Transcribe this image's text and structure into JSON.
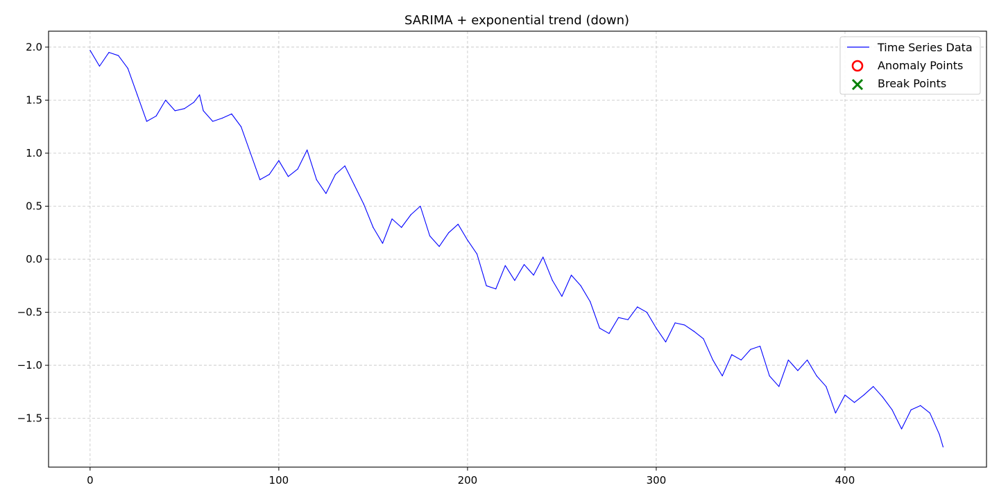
{
  "chart_data": {
    "type": "line",
    "title": "SARIMA + exponential trend (down)",
    "xlabel": "",
    "ylabel": "",
    "xlim": [
      -22,
      475
    ],
    "ylim": [
      -1.96,
      2.15
    ],
    "xticks": [
      0,
      100,
      200,
      300,
      400
    ],
    "yticks": [
      -1.5,
      -1.0,
      -0.5,
      0.0,
      0.5,
      1.0,
      1.5,
      2.0
    ],
    "grid": true,
    "legend": {
      "placement": "top-right",
      "entries": [
        {
          "label": "Time Series Data",
          "marker": "line",
          "color": "#0000ff"
        },
        {
          "label": "Anomaly Points",
          "marker": "circle-open",
          "color": "#ff0000"
        },
        {
          "label": "Break Points",
          "marker": "x",
          "color": "#008000"
        }
      ]
    },
    "series": [
      {
        "name": "Time Series Data",
        "color": "#0000ff",
        "x": [
          0,
          5,
          10,
          15,
          20,
          25,
          30,
          35,
          40,
          45,
          50,
          55,
          58,
          60,
          65,
          70,
          75,
          80,
          85,
          90,
          95,
          100,
          105,
          110,
          115,
          120,
          125,
          130,
          135,
          140,
          145,
          150,
          155,
          160,
          165,
          170,
          175,
          180,
          185,
          190,
          195,
          200,
          205,
          210,
          215,
          220,
          225,
          230,
          235,
          240,
          245,
          250,
          255,
          260,
          265,
          270,
          275,
          280,
          285,
          290,
          295,
          300,
          305,
          310,
          315,
          320,
          325,
          330,
          335,
          340,
          345,
          350,
          355,
          360,
          365,
          370,
          375,
          380,
          385,
          390,
          395,
          400,
          405,
          410,
          415,
          420,
          425,
          430,
          435,
          440,
          445,
          450,
          452
        ],
        "values": [
          1.97,
          1.82,
          1.95,
          1.92,
          1.8,
          1.55,
          1.3,
          1.35,
          1.5,
          1.4,
          1.42,
          1.48,
          1.55,
          1.4,
          1.3,
          1.33,
          1.37,
          1.25,
          1.0,
          0.75,
          0.8,
          0.93,
          0.78,
          0.85,
          1.03,
          0.75,
          0.62,
          0.8,
          0.88,
          0.7,
          0.52,
          0.3,
          0.15,
          0.38,
          0.3,
          0.42,
          0.5,
          0.22,
          0.12,
          0.25,
          0.33,
          0.18,
          0.05,
          -0.25,
          -0.28,
          -0.06,
          -0.2,
          -0.05,
          -0.15,
          0.02,
          -0.2,
          -0.35,
          -0.15,
          -0.25,
          -0.4,
          -0.65,
          -0.7,
          -0.55,
          -0.57,
          -0.45,
          -0.5,
          -0.65,
          -0.78,
          -0.6,
          -0.62,
          -0.68,
          -0.75,
          -0.95,
          -1.1,
          -0.9,
          -0.95,
          -0.85,
          -0.82,
          -1.1,
          -1.2,
          -0.95,
          -1.05,
          -0.95,
          -1.1,
          -1.2,
          -1.45,
          -1.28,
          -1.35,
          -1.28,
          -1.2,
          -1.3,
          -1.42,
          -1.6,
          -1.42,
          -1.38,
          -1.45,
          -1.65,
          -1.77
        ]
      }
    ]
  }
}
